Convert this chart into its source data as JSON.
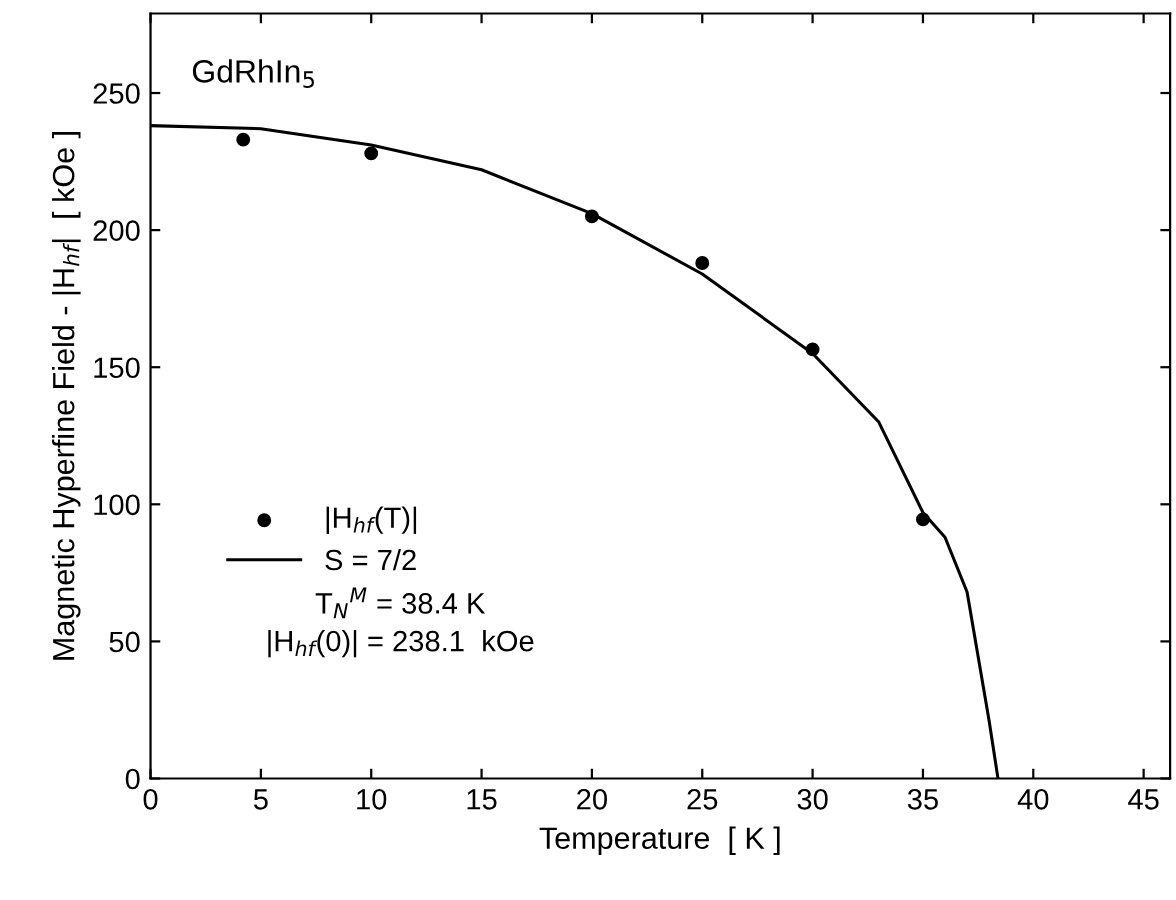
{
  "chart_data": {
    "type": "scatter",
    "title": "GdRhIn$_{5}$",
    "xlabel": "Temperature  [ K ]",
    "ylabel": "Magnetic Hyperfine Field - |H$_{hf}$|  [ kOe ]",
    "xlim": [
      0,
      46.2
    ],
    "ylim": [
      0,
      279
    ],
    "xticks": [
      0,
      5,
      10,
      15,
      20,
      25,
      30,
      35,
      40,
      45
    ],
    "yticks": [
      0,
      50,
      100,
      150,
      200,
      250
    ],
    "series": [
      {
        "name": "|H$_{hf}$(T)|",
        "color": "#000000",
        "marker": "circle",
        "x": [
          4.2,
          10,
          20,
          25,
          30,
          35
        ],
        "values": [
          233,
          228,
          205,
          188,
          156.5,
          94.5
        ]
      },
      {
        "name": "S = 7/2",
        "type": "line",
        "color": "#000000",
        "marker": "none",
        "x": [
          0,
          5,
          10,
          15,
          20,
          25,
          30,
          33,
          35,
          36,
          37,
          38,
          38.4
        ],
        "values": [
          238.1,
          237,
          231,
          222,
          206,
          184,
          155,
          130,
          97,
          88,
          68,
          21,
          0
        ]
      }
    ],
    "annotations": [
      "T$_{N}$$^{M}$ = 38.4 K",
      "|H$_{hf}$(0)| = 238.1  kOe"
    ],
    "legend": "center left",
    "grid": false
  }
}
